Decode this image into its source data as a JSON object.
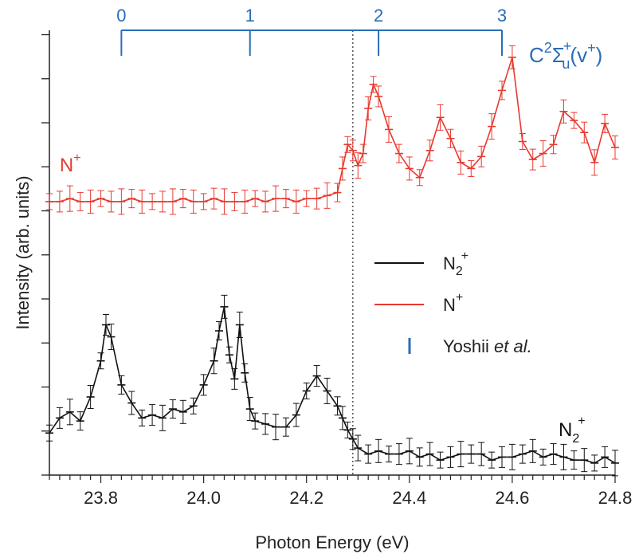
{
  "chart_data": {
    "type": "line",
    "xlabel": "Photon Energy (eV)",
    "ylabel": "Intensity (arb. units)",
    "xlim": [
      23.7,
      24.8
    ],
    "x_ticks": [
      "23.8",
      "24.0",
      "24.2",
      "24.4",
      "24.6",
      "24.8"
    ],
    "error_bars": true,
    "y_tick_labels_shown": false,
    "vertical_marker": {
      "x": 24.29,
      "style": "dotted"
    },
    "series": [
      {
        "name": "N2+",
        "color": "#111111",
        "x": [
          23.7,
          23.72,
          23.74,
          23.76,
          23.78,
          23.8,
          23.81,
          23.82,
          23.84,
          23.86,
          23.88,
          23.9,
          23.92,
          23.94,
          23.96,
          23.98,
          24.0,
          24.02,
          24.03,
          24.04,
          24.05,
          24.06,
          24.07,
          24.08,
          24.09,
          24.1,
          24.12,
          24.14,
          24.16,
          24.18,
          24.2,
          24.22,
          24.24,
          24.26,
          24.27,
          24.28,
          24.29,
          24.3,
          24.32,
          24.34,
          24.36,
          24.38,
          24.4,
          24.42,
          24.44,
          24.46,
          24.48,
          24.5,
          24.52,
          24.54,
          24.56,
          24.58,
          24.6,
          24.62,
          24.64,
          24.66,
          24.68,
          24.7,
          24.72,
          24.74,
          24.76,
          24.78,
          24.8
        ],
        "values": [
          0.04,
          0.09,
          0.11,
          0.08,
          0.16,
          0.28,
          0.4,
          0.36,
          0.2,
          0.14,
          0.09,
          0.1,
          0.09,
          0.12,
          0.11,
          0.13,
          0.2,
          0.28,
          0.38,
          0.46,
          0.3,
          0.22,
          0.4,
          0.24,
          0.12,
          0.08,
          0.07,
          0.06,
          0.06,
          0.1,
          0.18,
          0.23,
          0.18,
          0.13,
          0.09,
          0.05,
          0.02,
          -0.01,
          -0.03,
          -0.02,
          -0.03,
          -0.03,
          -0.02,
          -0.04,
          -0.03,
          -0.05,
          -0.04,
          -0.03,
          -0.03,
          -0.03,
          -0.05,
          -0.04,
          -0.04,
          -0.03,
          -0.02,
          -0.04,
          -0.03,
          -0.04,
          -0.05,
          -0.05,
          -0.06,
          -0.04,
          -0.06
        ]
      },
      {
        "name": "N+",
        "color": "#e8392f",
        "x": [
          23.7,
          23.72,
          23.74,
          23.76,
          23.78,
          23.8,
          23.82,
          23.84,
          23.86,
          23.88,
          23.9,
          23.92,
          23.94,
          23.96,
          23.98,
          24.0,
          24.02,
          24.04,
          24.06,
          24.08,
          24.1,
          24.12,
          24.14,
          24.16,
          24.18,
          24.2,
          24.22,
          24.24,
          24.26,
          24.27,
          24.28,
          24.29,
          24.3,
          24.31,
          24.32,
          24.33,
          24.34,
          24.36,
          24.38,
          24.4,
          24.42,
          24.44,
          24.46,
          24.48,
          24.5,
          24.52,
          24.54,
          24.56,
          24.58,
          24.6,
          24.62,
          24.64,
          24.66,
          24.68,
          24.7,
          24.72,
          24.74,
          24.76,
          24.78,
          24.8
        ],
        "values": [
          0.81,
          0.81,
          0.82,
          0.81,
          0.81,
          0.82,
          0.81,
          0.81,
          0.82,
          0.81,
          0.81,
          0.81,
          0.81,
          0.82,
          0.81,
          0.81,
          0.82,
          0.81,
          0.81,
          0.81,
          0.82,
          0.81,
          0.82,
          0.82,
          0.81,
          0.82,
          0.82,
          0.83,
          0.84,
          0.92,
          1.0,
          0.98,
          0.93,
          0.97,
          1.12,
          1.2,
          1.16,
          1.05,
          0.97,
          0.92,
          0.89,
          0.98,
          1.09,
          1.02,
          0.94,
          0.92,
          0.96,
          1.06,
          1.18,
          1.29,
          1.01,
          0.95,
          0.97,
          1.0,
          1.11,
          1.08,
          1.04,
          0.94,
          1.07,
          0.99
        ]
      }
    ],
    "legend": {
      "placement": "center-right",
      "entries": [
        {
          "label": "N",
          "sub": "2",
          "sup": "+",
          "color": "#111111",
          "marker": "line"
        },
        {
          "label": "N",
          "sub": "",
          "sup": "+",
          "color": "#e8392f",
          "marker": "line"
        },
        {
          "label": "Yoshii ",
          "italic": "et al.",
          "color": "#2a6db8",
          "marker": "tick"
        }
      ]
    },
    "annotations": [
      {
        "text": "N",
        "sup": "+",
        "color": "#e8392f",
        "x": 23.72,
        "y": 0.91
      },
      {
        "text": "N",
        "sub": "2",
        "sup": "+",
        "color": "#111111",
        "x": 24.69,
        "y": 0.03
      }
    ],
    "top_scale": {
      "label": "C",
      "label_sup": "2",
      "label_sigma": "Σ",
      "label_sub": "u",
      "label_sup2": "+",
      "label_paren": "(v",
      "label_paren_sup": "+",
      "label_close": ")",
      "color": "#2a6db8",
      "positions": [
        23.84,
        24.09,
        24.34,
        24.58
      ],
      "labels": [
        "0",
        "1",
        "2",
        "3"
      ]
    }
  }
}
